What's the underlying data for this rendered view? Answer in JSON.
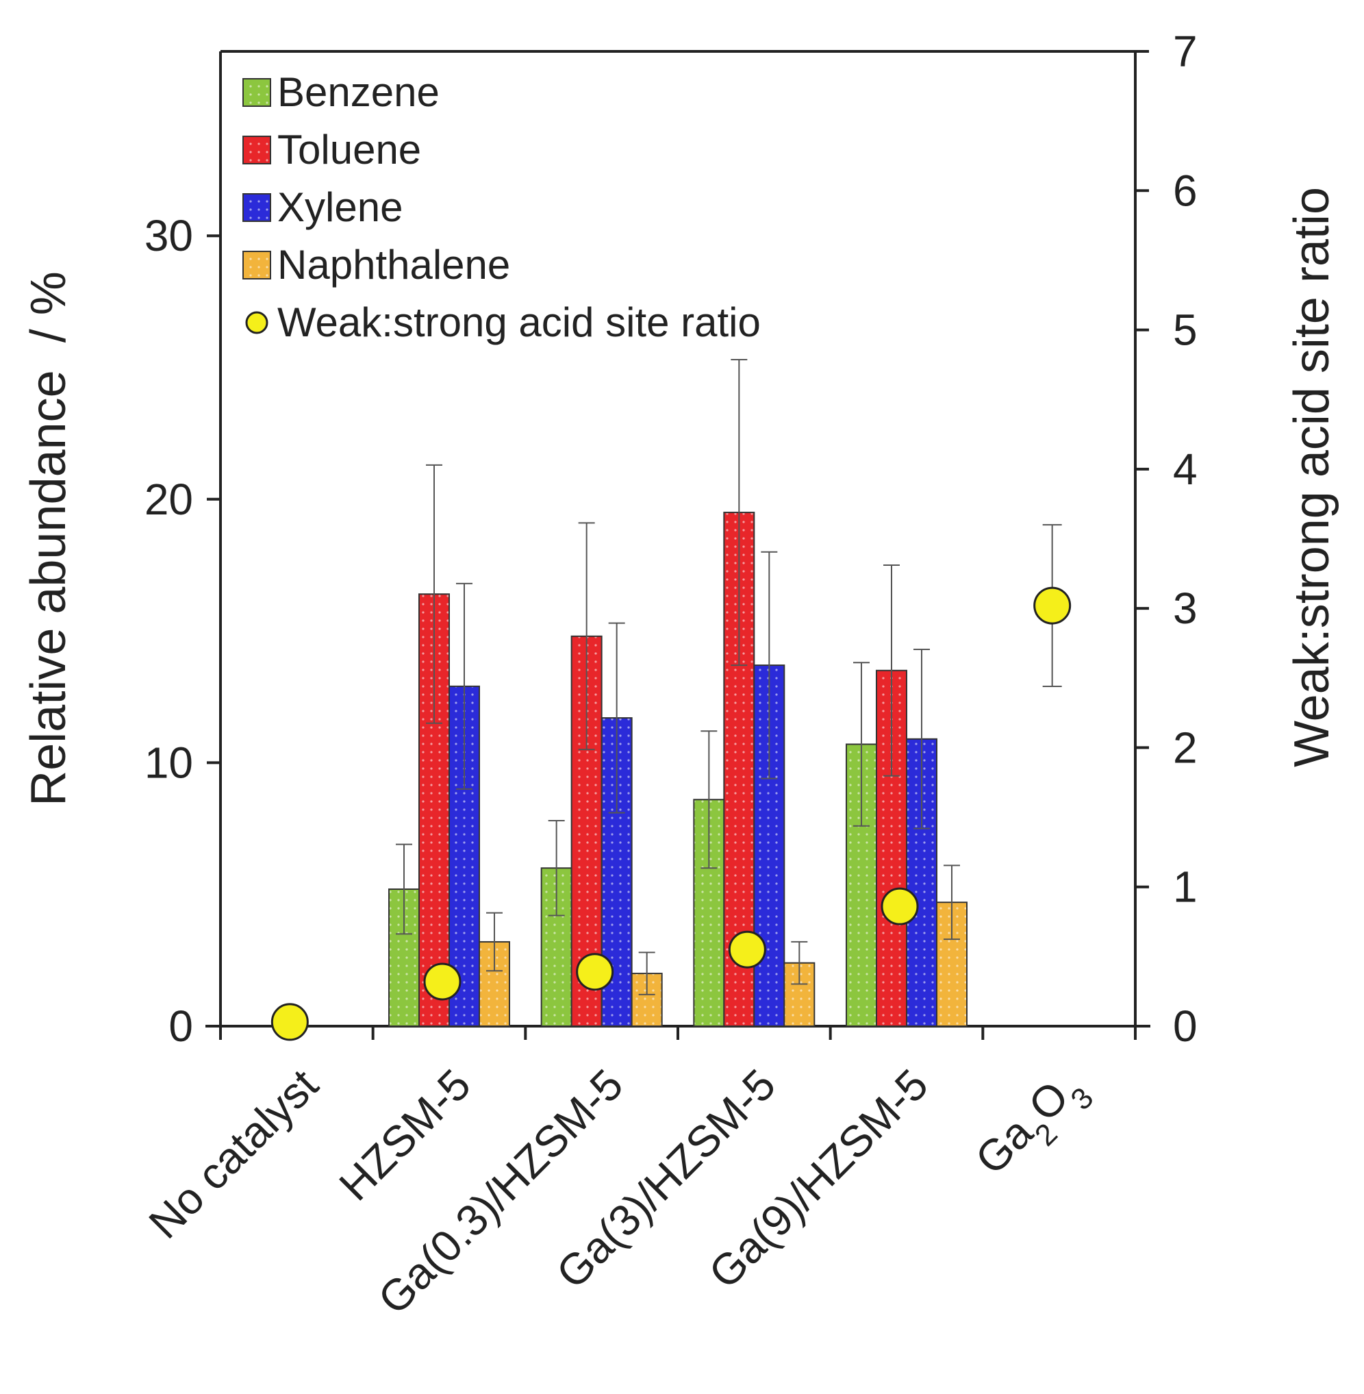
{
  "chart_data": {
    "type": "bar",
    "categories": [
      "No catalyst",
      "HZSM-5",
      "Ga(0.3)/HZSM-5",
      "Ga(3)/HZSM-5",
      "Ga(9)/HZSM-5",
      "Ga2O3"
    ],
    "ylabel": "Relative abundance  / %",
    "y2label": "Weak:strong acid site ratio",
    "ylim": [
      0,
      37
    ],
    "y2lim": [
      0,
      7
    ],
    "yticks": [
      0,
      10,
      20,
      30
    ],
    "y2ticks": [
      0,
      1,
      2,
      3,
      4,
      5,
      6,
      7
    ],
    "series": [
      {
        "name": "Benzene",
        "color": "#8cc63f",
        "values": [
          null,
          5.2,
          6.0,
          8.6,
          10.7,
          null
        ],
        "errors": [
          null,
          1.7,
          1.8,
          2.6,
          3.1,
          null
        ]
      },
      {
        "name": "Toluene",
        "color": "#e8262a",
        "values": [
          null,
          16.4,
          14.8,
          19.5,
          13.5,
          null
        ],
        "errors": [
          null,
          4.9,
          4.3,
          5.8,
          4.0,
          null
        ]
      },
      {
        "name": "Xylene",
        "color": "#2b2bd9",
        "values": [
          null,
          12.9,
          11.7,
          13.7,
          10.9,
          null
        ],
        "errors": [
          null,
          3.9,
          3.6,
          4.3,
          3.4,
          null
        ]
      },
      {
        "name": "Naphthalene",
        "color": "#f2b43c",
        "values": [
          null,
          3.2,
          2.0,
          2.4,
          4.7,
          null
        ],
        "errors": [
          null,
          1.1,
          0.8,
          0.8,
          1.4,
          null
        ]
      }
    ],
    "ratio": {
      "name": "Weak:strong acid site ratio",
      "color": "#f5ef1a",
      "values": [
        0.03,
        0.32,
        0.39,
        0.55,
        0.86,
        3.02
      ],
      "errors": [
        null,
        null,
        null,
        null,
        null,
        0.58
      ]
    },
    "legend_position": "top-left"
  }
}
